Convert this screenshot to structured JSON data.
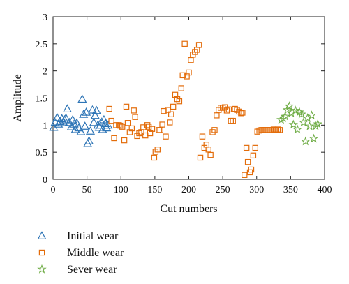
{
  "chart_data": {
    "type": "scatter",
    "title": "",
    "xlabel": "Cut numbers",
    "ylabel": "Amplitude",
    "xlim": [
      0,
      400
    ],
    "ylim": [
      0,
      3
    ],
    "xticks": [
      "0",
      "50",
      "100",
      "150",
      "200",
      "250",
      "300",
      "350",
      "400"
    ],
    "yticks": [
      "0",
      "0.5",
      "1",
      "1.5",
      "2",
      "2.5",
      "3"
    ],
    "grid": false,
    "legend_position": "bottom-left, below plot",
    "series": [
      {
        "name": "Initial wear",
        "marker": "triangle",
        "color": "#2e75b6",
        "x": [
          1,
          3,
          6,
          8,
          10,
          13,
          15,
          17,
          19,
          21,
          24,
          27,
          29,
          31,
          33,
          35,
          38,
          41,
          43,
          45,
          47,
          49,
          51,
          53,
          55,
          58,
          60,
          62,
          64,
          66,
          68,
          71,
          73,
          75,
          77,
          79,
          81
        ],
        "y": [
          0.96,
          1.05,
          1.14,
          1.02,
          1.07,
          1.12,
          1.06,
          1.1,
          1.13,
          1.3,
          1.05,
          0.97,
          1.1,
          1.02,
          0.92,
          1.04,
          0.95,
          0.88,
          1.48,
          1.2,
          0.98,
          1.24,
          0.66,
          0.71,
          0.89,
          1.28,
          1.05,
          1.18,
          1.27,
          1.0,
          0.96,
          1.06,
          0.92,
          1.1,
          1.03,
          0.95,
          1.0
        ]
      },
      {
        "name": "Middle wear",
        "marker": "square",
        "color": "#e36c0a",
        "x": [
          83,
          86,
          90,
          93,
          97,
          99,
          102,
          105,
          108,
          110,
          113,
          116,
          119,
          121,
          124,
          127,
          130,
          133,
          136,
          139,
          141,
          143,
          146,
          149,
          151,
          154,
          156,
          158,
          161,
          163,
          166,
          169,
          172,
          174,
          177,
          180,
          183,
          186,
          189,
          191,
          194,
          197,
          200,
          203,
          206,
          209,
          212,
          215,
          217,
          220,
          223,
          226,
          229,
          232,
          235,
          238,
          241,
          244,
          247,
          250,
          253,
          256,
          259,
          262,
          265,
          268,
          271,
          274,
          277,
          279,
          282,
          285,
          287,
          290,
          292,
          295,
          298,
          301,
          304,
          307,
          310,
          313,
          316,
          319,
          322,
          325,
          328,
          331,
          334
        ],
        "y": [
          1.3,
          1.08,
          0.76,
          1.0,
          1.0,
          0.99,
          0.97,
          0.72,
          1.34,
          1.04,
          0.87,
          0.94,
          1.27,
          1.15,
          0.8,
          0.85,
          0.87,
          0.96,
          0.81,
          1.0,
          0.97,
          0.85,
          0.93,
          0.4,
          0.51,
          0.55,
          0.91,
          0.91,
          1.01,
          1.26,
          0.79,
          1.28,
          1.05,
          1.2,
          1.34,
          1.56,
          1.48,
          1.44,
          1.68,
          1.92,
          2.5,
          1.9,
          1.97,
          2.2,
          2.3,
          2.35,
          2.39,
          2.48,
          0.4,
          0.79,
          0.58,
          0.64,
          0.55,
          0.45,
          0.87,
          0.91,
          1.18,
          1.28,
          1.32,
          1.32,
          1.33,
          1.27,
          1.29,
          1.08,
          1.08,
          1.3,
          1.28,
          1.25,
          1.22,
          1.23,
          0.08,
          0.58,
          0.32,
          0.13,
          0.18,
          0.44,
          0.58,
          0.88,
          0.9,
          0.91,
          0.91,
          0.91,
          0.91,
          0.91,
          0.91,
          0.92,
          0.91,
          0.92,
          0.91
        ]
      },
      {
        "name": "Sever wear",
        "marker": "star",
        "color": "#70ad47",
        "x": [
          336,
          339,
          342,
          345,
          348,
          351,
          354,
          357,
          360,
          363,
          366,
          369,
          372,
          375,
          378,
          381,
          384,
          387,
          390
        ],
        "y": [
          1.1,
          1.13,
          1.16,
          1.28,
          1.35,
          1.22,
          1.01,
          1.27,
          0.92,
          1.24,
          1.2,
          1.05,
          0.7,
          1.13,
          0.98,
          1.18,
          0.75,
          0.98,
          1.02
        ]
      }
    ]
  }
}
